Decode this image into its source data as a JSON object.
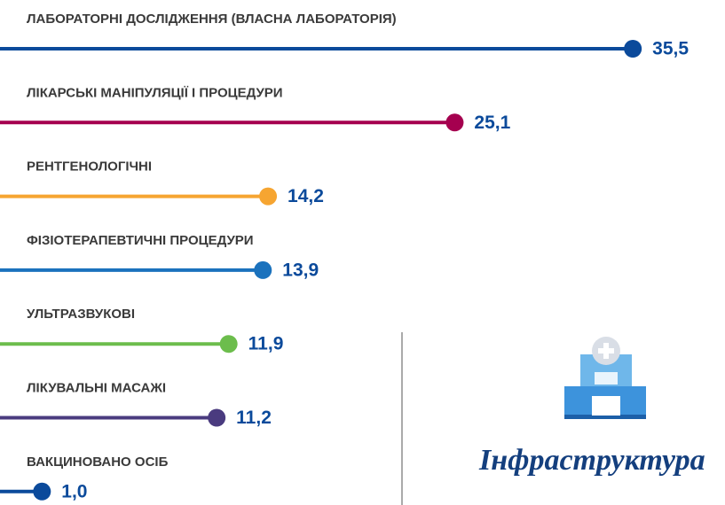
{
  "chart_data": {
    "type": "lollipop",
    "categories": [
      "ЛАБОРАТОРНІ ДОСЛІДЖЕННЯ (ВЛАСНА ЛАБОРАТОРІЯ)",
      "ЛІКАРСЬКІ МАНІПУЛЯЦІЇ І ПРОЦЕДУРИ",
      "РЕНТГЕНОЛОГІЧНІ",
      "ФІЗІОТЕРАПЕВТИЧНІ ПРОЦЕДУРИ",
      "УЛЬТРАЗВУКОВІ",
      "ЛІКУВАЛЬНІ МАСАЖІ",
      "ВАКЦИНОВАНО ОСІБ"
    ],
    "values": [
      35.5,
      25.1,
      14.2,
      13.9,
      11.9,
      11.2,
      1.0
    ],
    "value_labels": [
      "35,5",
      "25,1",
      "14,2",
      "13,9",
      "11,9",
      "11,2",
      "1,0"
    ],
    "colors": [
      "#0b4a9b",
      "#a5004f",
      "#f6a531",
      "#1b72bd",
      "#6cbd4c",
      "#4a3b7f",
      "#0b4a9b"
    ],
    "label_color": "#0b4a9b",
    "side_title": "Інфраструктура"
  }
}
